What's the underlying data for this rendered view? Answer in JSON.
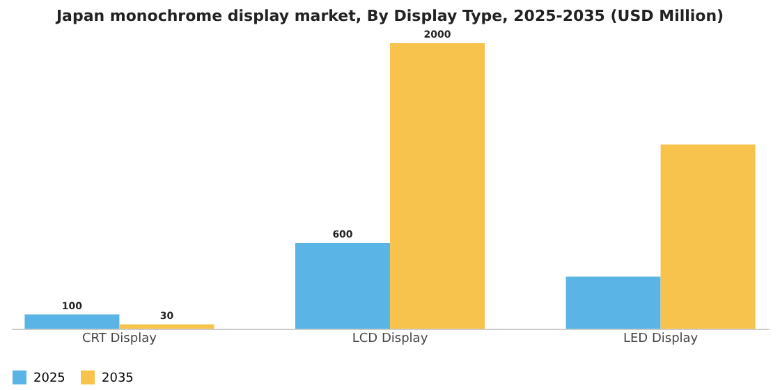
{
  "chart_data": {
    "type": "bar",
    "title": "Japan monochrome display market, By Display Type, 2025-2035 (USD Million)",
    "categories": [
      "CRT Display",
      "LCD Display",
      "LED Display"
    ],
    "series": [
      {
        "name": "2025",
        "color": "#5ab4e5",
        "values": [
          100,
          600,
          365
        ],
        "value_labels": [
          "100",
          "600",
          null
        ]
      },
      {
        "name": "2035",
        "color": "#f7c34c",
        "values": [
          30,
          2000,
          1290
        ],
        "value_labels": [
          "30",
          "2000",
          null
        ]
      }
    ],
    "legend": "bottom",
    "grid": false
  }
}
